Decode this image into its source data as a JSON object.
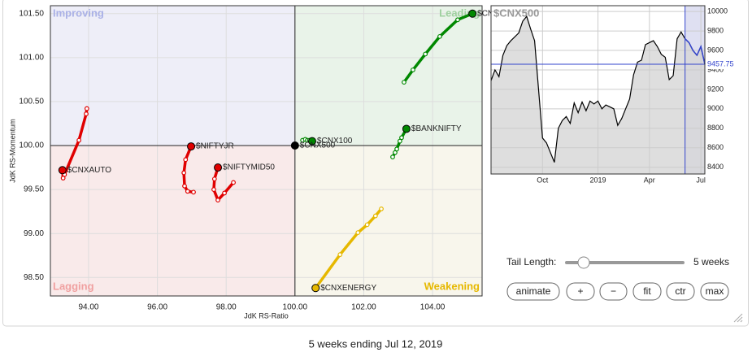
{
  "chart_data": [
    {
      "type": "scatter",
      "xlabel": "JdK RS-Ratio",
      "ylabel": "JdK RS-Momentum",
      "xlim": [
        92.89,
        105.44
      ],
      "ylim": [
        98.29,
        101.59
      ],
      "xticks": [
        {
          "value": 94,
          "label": "94.00"
        },
        {
          "value": 96,
          "label": "96.00"
        },
        {
          "value": 98,
          "label": "98.00"
        },
        {
          "value": 100,
          "label": "100.00"
        },
        {
          "value": 102,
          "label": "102.00"
        },
        {
          "value": 104,
          "label": "104.00"
        }
      ],
      "yticks": [
        {
          "value": 98.5,
          "label": "98.50"
        },
        {
          "value": 99,
          "label": "99.00"
        },
        {
          "value": 99.5,
          "label": "99.50"
        },
        {
          "value": 100,
          "label": "100.00"
        },
        {
          "value": 100.5,
          "label": "100.50"
        },
        {
          "value": 101,
          "label": "101.00"
        },
        {
          "value": 101.5,
          "label": "101.50"
        }
      ],
      "grid": true,
      "center": [
        100,
        100
      ],
      "quadrants": [
        {
          "label": "Improving",
          "corner": "top-left",
          "color": "#a9b0e6",
          "fill": "#eeeef8"
        },
        {
          "label": "Leading",
          "corner": "top-right",
          "color": "#9fd09f",
          "fill": "#e9f3e9"
        },
        {
          "label": "Lagging",
          "corner": "bottom-left",
          "color": "#f0a0a0",
          "fill": "#f9eaea"
        },
        {
          "label": "Weakening",
          "corner": "bottom-right",
          "color": "#e6b800",
          "fill": "#f8f6ec"
        }
      ],
      "series": [
        {
          "name": "$CNXAUTO",
          "color": "#e00000",
          "x": [
            93.95,
            93.93,
            93.72,
            93.3,
            93.26,
            93.24
          ],
          "y": [
            100.42,
            100.36,
            100.06,
            99.67,
            99.63,
            99.72
          ]
        },
        {
          "name": "$NIFTYJR",
          "color": "#e00000",
          "x": [
            97.05,
            96.88,
            96.79,
            96.77,
            96.82,
            96.98
          ],
          "y": [
            99.47,
            99.48,
            99.54,
            99.69,
            99.84,
            99.99
          ]
        },
        {
          "name": "$NIFTYMID50",
          "color": "#e00000",
          "x": [
            98.21,
            97.95,
            97.76,
            97.64,
            97.66,
            97.76
          ],
          "y": [
            99.58,
            99.46,
            99.38,
            99.5,
            99.62,
            99.75
          ]
        },
        {
          "name": "$BANKNIFTY",
          "color": "#008800",
          "x": [
            102.84,
            102.91,
            102.96,
            103.05,
            103.1,
            103.24
          ],
          "y": [
            99.87,
            99.92,
            99.96,
            100.05,
            100.09,
            100.19
          ]
        },
        {
          "name": "$CNXFIN",
          "color": "#008800",
          "x": [
            103.17,
            103.43,
            103.79,
            104.21,
            104.73,
            105.16
          ],
          "y": [
            100.72,
            100.86,
            101.04,
            101.24,
            101.43,
            101.5
          ]
        },
        {
          "name": "$CNX100",
          "color": "#008800",
          "x": [
            100.22,
            100.3,
            100.36,
            100.42,
            100.47,
            100.5
          ],
          "y": [
            100.06,
            100.07,
            100.06,
            100.06,
            100.06,
            100.05
          ]
        },
        {
          "name": "$CNXENERGY",
          "color": "#e6b800",
          "x": [
            102.51,
            102.34,
            102.1,
            101.83,
            101.31,
            100.6
          ],
          "y": [
            99.28,
            99.2,
            99.1,
            99.01,
            98.76,
            98.38
          ]
        },
        {
          "name": "$CNX500",
          "color": "#000000",
          "x": [
            100
          ],
          "y": [
            100
          ]
        }
      ]
    },
    {
      "type": "line",
      "title": "$CNX500",
      "categories": [
        null,
        null,
        null,
        null,
        null,
        null,
        null,
        null,
        null,
        null,
        null,
        null,
        null,
        "Oct",
        null,
        null,
        null,
        null,
        null,
        null,
        null,
        null,
        null,
        null,
        null,
        null,
        null,
        "2019",
        null,
        null,
        null,
        null,
        null,
        null,
        null,
        null,
        null,
        null,
        null,
        null,
        "Apr",
        null,
        null,
        null,
        null,
        null,
        null,
        null,
        null,
        null,
        null,
        null,
        null,
        "Jul",
        null
      ],
      "values": [
        9290,
        9400,
        9330,
        9550,
        9650,
        9700,
        9740,
        9780,
        9900,
        9950,
        9820,
        9700,
        9200,
        8700,
        8650,
        8550,
        8450,
        8800,
        8880,
        8920,
        8850,
        9060,
        8960,
        9070,
        8980,
        9080,
        9050,
        9080,
        9000,
        9040,
        9020,
        9000,
        8830,
        8900,
        9000,
        9100,
        9350,
        9480,
        9500,
        9660,
        9680,
        9700,
        9640,
        9560,
        9530,
        9300,
        9340,
        9720,
        9790,
        9720,
        9680,
        9600,
        9550,
        9640,
        9457.75
      ],
      "color": "#000000",
      "highlight_color": "#3344cc",
      "ylim": [
        8330,
        10060
      ],
      "yticks": [
        8400,
        8600,
        8800,
        9000,
        9200,
        9400,
        9600,
        9800,
        10000
      ],
      "grid": true,
      "last_value": 9457.75
    }
  ],
  "controls": {
    "tail_label": "Tail Length:",
    "tail_length": {
      "value": 5,
      "label": "5 weeks"
    },
    "buttons": [
      "animate",
      "+",
      "−",
      "fit",
      "ctr",
      "max"
    ]
  },
  "caption": "5 weeks ending Jul 12, 2019"
}
